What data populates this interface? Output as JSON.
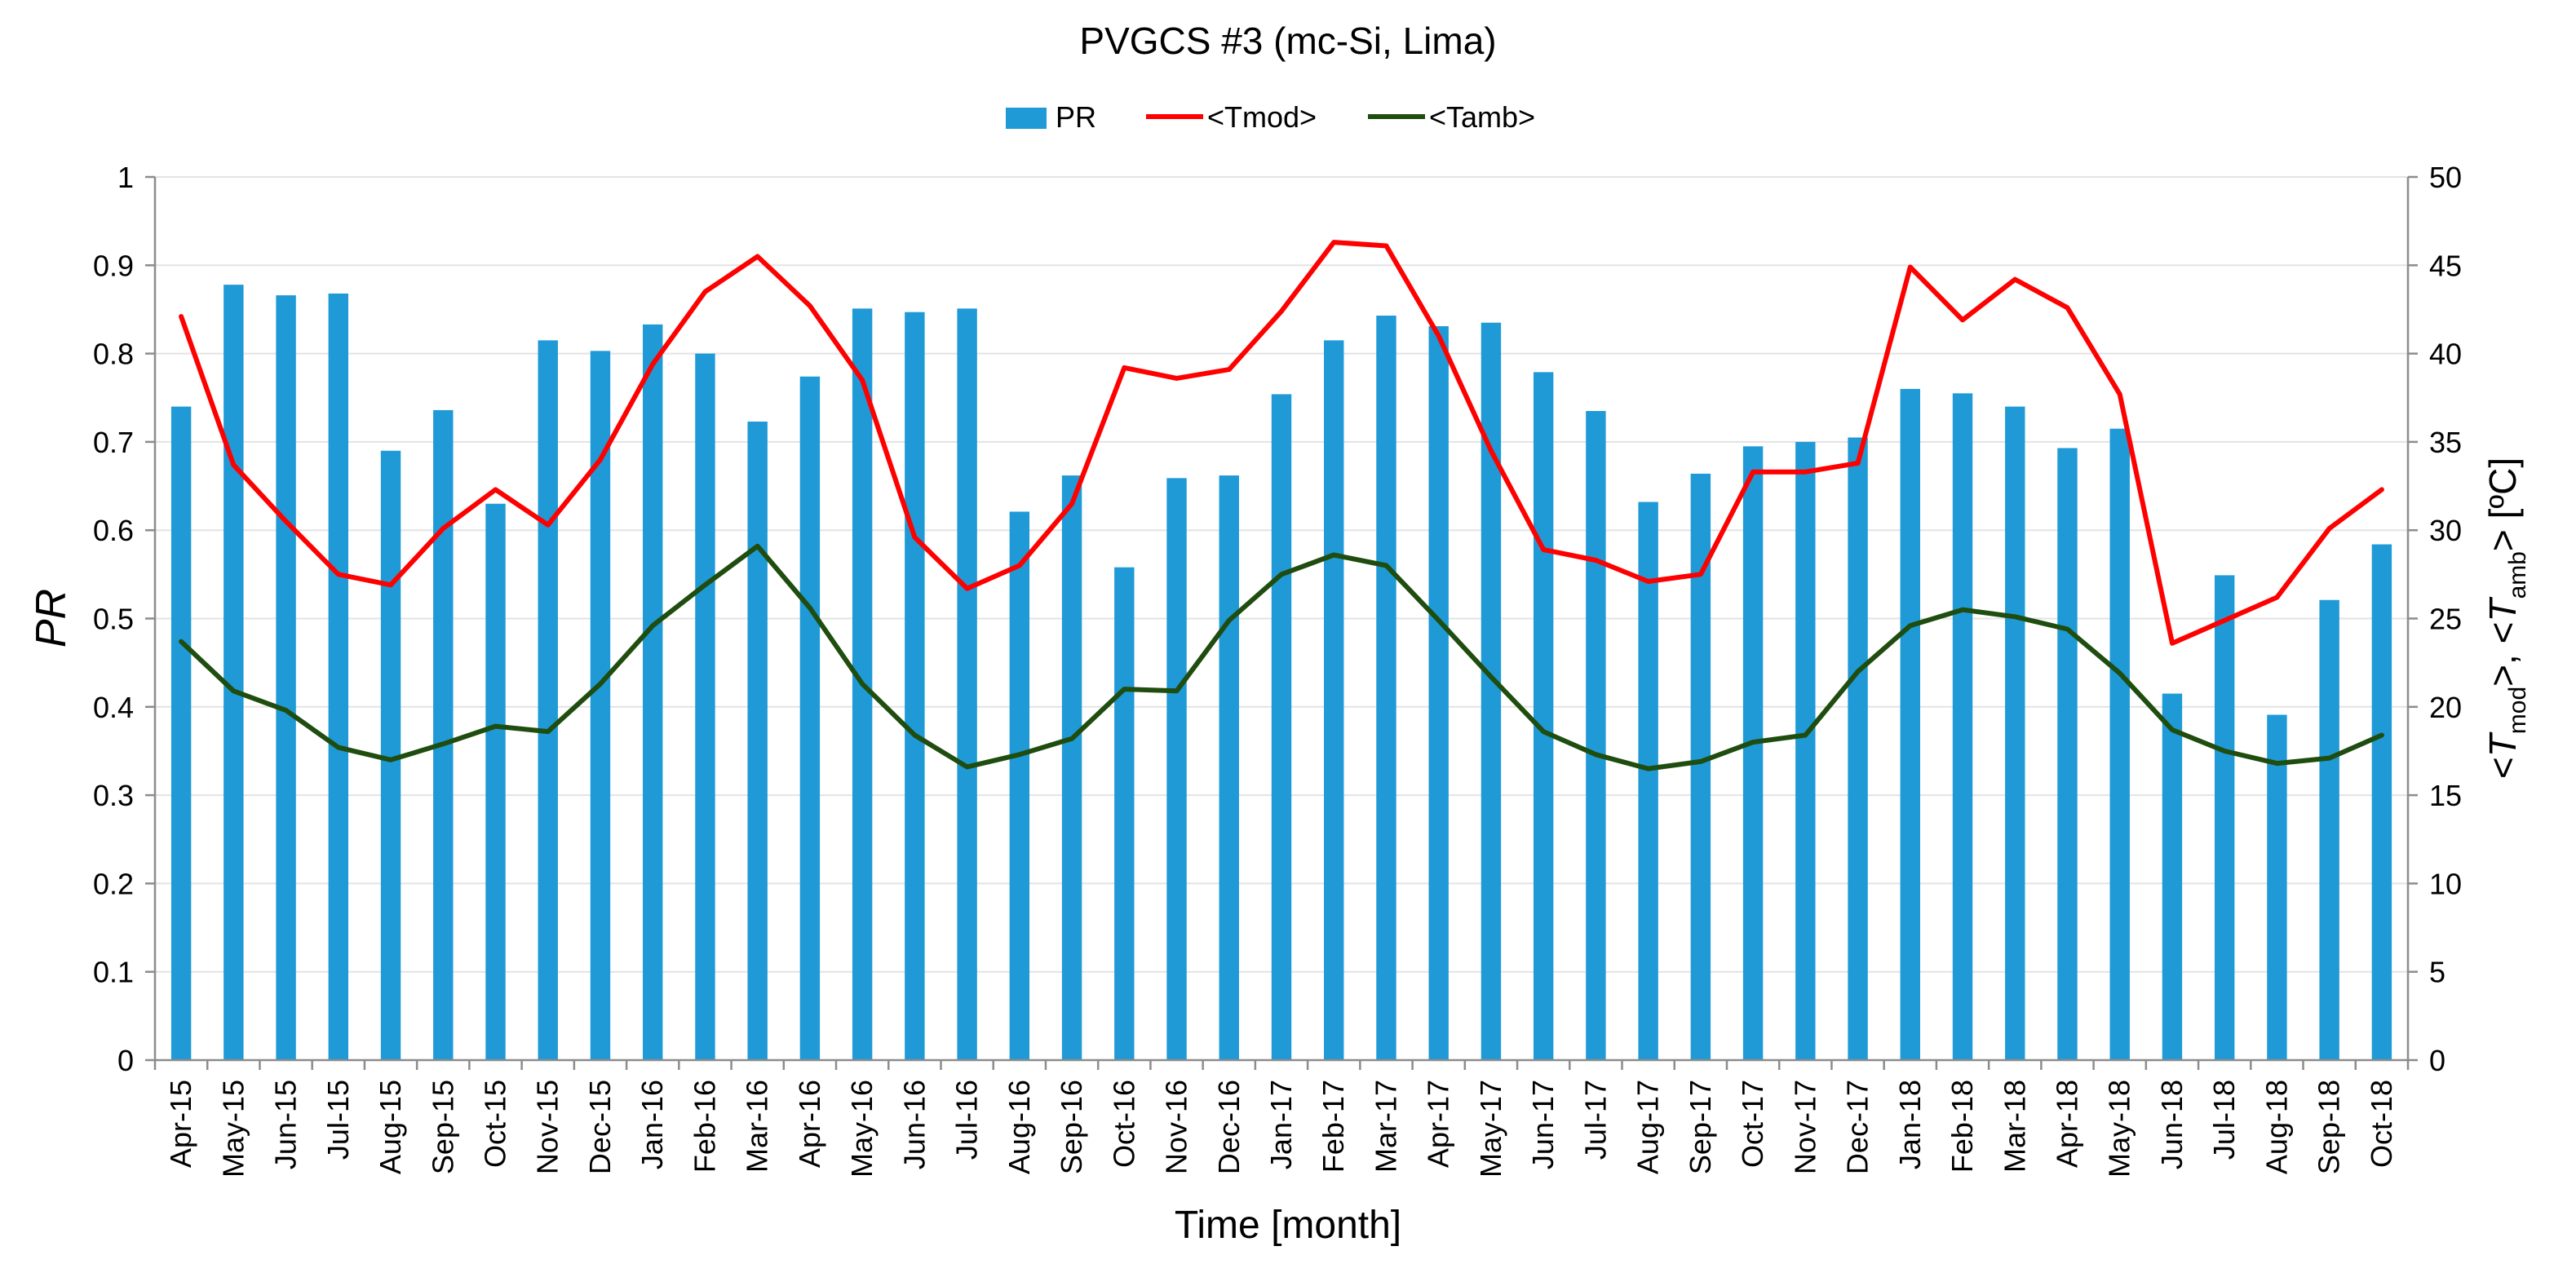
{
  "chart_data": {
    "type": "bar",
    "title": "PVGCS #3 (mc-Si, Lima)",
    "xlabel": "Time [month]",
    "ylabel": "PR",
    "y2label_parts": [
      "<",
      "T",
      "mod",
      ">, <",
      "T",
      "amb",
      "> [ºC]"
    ],
    "ylim": [
      0,
      1
    ],
    "y2lim": [
      0,
      50
    ],
    "yticks": [
      "0",
      "0.1",
      "0.2",
      "0.3",
      "0.4",
      "0.5",
      "0.6",
      "0.7",
      "0.8",
      "0.9",
      "1"
    ],
    "y2ticks": [
      "0",
      "5",
      "10",
      "15",
      "20",
      "25",
      "30",
      "35",
      "40",
      "45",
      "50"
    ],
    "grid": true,
    "legend_position": "top-center",
    "categories": [
      "Apr-15",
      "May-15",
      "Jun-15",
      "Jul-15",
      "Aug-15",
      "Sep-15",
      "Oct-15",
      "Nov-15",
      "Dec-15",
      "Jan-16",
      "Feb-16",
      "Mar-16",
      "Apr-16",
      "May-16",
      "Jun-16",
      "Jul-16",
      "Aug-16",
      "Sep-16",
      "Oct-16",
      "Nov-16",
      "Dec-16",
      "Jan-17",
      "Feb-17",
      "Mar-17",
      "Apr-17",
      "May-17",
      "Jun-17",
      "Jul-17",
      "Aug-17",
      "Sep-17",
      "Oct-17",
      "Nov-17",
      "Dec-17",
      "Jan-18",
      "Feb-18",
      "Mar-18",
      "Apr-18",
      "May-18",
      "Jun-18",
      "Jul-18",
      "Aug-18",
      "Sep-18",
      "Oct-18"
    ],
    "series": [
      {
        "name": "PR",
        "kind": "bar",
        "axis": "left",
        "color": "#1f9ad6",
        "values": [
          0.74,
          0.878,
          0.866,
          0.868,
          0.69,
          0.736,
          0.63,
          0.815,
          0.803,
          0.833,
          0.8,
          0.723,
          0.774,
          0.851,
          0.847,
          0.851,
          0.621,
          0.662,
          0.558,
          0.659,
          0.662,
          0.754,
          0.815,
          0.843,
          0.831,
          0.835,
          0.779,
          0.735,
          0.632,
          0.664,
          0.695,
          0.7,
          0.705,
          0.76,
          0.755,
          0.74,
          0.693,
          0.715,
          0.415,
          0.549,
          0.391,
          0.521,
          0.584
        ]
      },
      {
        "name": "<Tmod>",
        "kind": "line",
        "axis": "right",
        "color": "#ff0000",
        "values": [
          42.1,
          33.7,
          30.5,
          27.5,
          26.9,
          30.1,
          32.3,
          30.3,
          34.0,
          39.4,
          43.5,
          45.5,
          42.7,
          38.5,
          29.6,
          26.7,
          28.0,
          31.5,
          39.2,
          38.6,
          39.1,
          42.4,
          46.3,
          46.1,
          41.0,
          34.5,
          28.9,
          28.3,
          27.1,
          27.5,
          33.3,
          33.3,
          33.8,
          44.9,
          41.9,
          44.2,
          42.6,
          37.7,
          23.6,
          24.9,
          26.2,
          30.1,
          32.3
        ]
      },
      {
        "name": "<Tamb>",
        "kind": "line",
        "axis": "right",
        "color": "#1f4d0f",
        "values": [
          23.7,
          20.9,
          19.8,
          17.7,
          17.0,
          17.9,
          18.9,
          18.6,
          21.3,
          24.6,
          26.9,
          29.1,
          25.6,
          21.3,
          18.4,
          16.6,
          17.3,
          18.2,
          21.0,
          20.9,
          24.9,
          27.5,
          28.6,
          28.0,
          24.9,
          21.7,
          18.6,
          17.3,
          16.5,
          16.9,
          18.0,
          18.4,
          22.0,
          24.6,
          25.5,
          25.1,
          24.4,
          21.9,
          18.7,
          17.5,
          16.8,
          17.1,
          18.4
        ]
      }
    ]
  }
}
